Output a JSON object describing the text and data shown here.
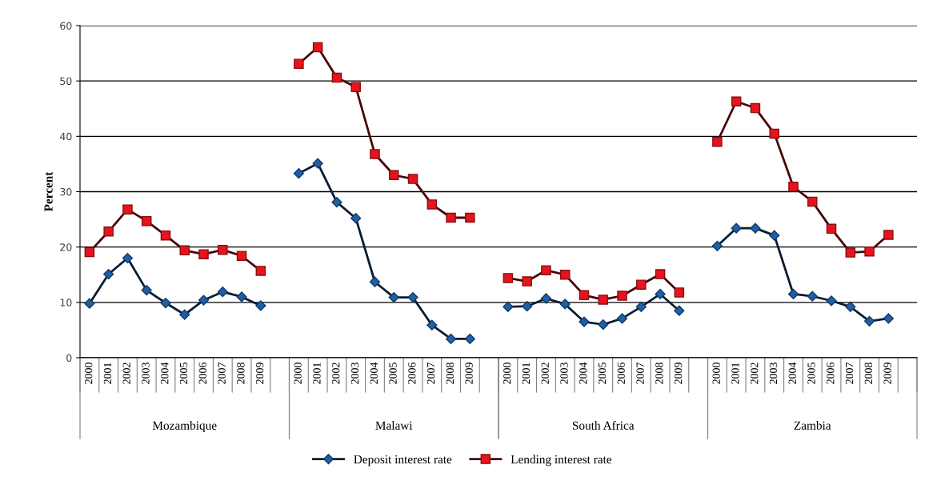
{
  "chart_data": {
    "type": "line",
    "ylabel": "Percent",
    "categories": [
      "2000",
      "2001",
      "2002",
      "2003",
      "2004",
      "2005",
      "2006",
      "2007",
      "2008",
      "2009",
      null,
      "2000",
      "2001",
      "2002",
      "2003",
      "2004",
      "2005",
      "2006",
      "2007",
      "2008",
      "2009",
      null,
      "2000",
      "2001",
      "2002",
      "2003",
      "2004",
      "2005",
      "2006",
      "2007",
      "2008",
      "2009",
      null,
      "2000",
      "2001",
      "2002",
      "2003",
      "2004",
      "2005",
      "2006",
      "2007",
      "2008",
      "2009",
      null
    ],
    "annotations": [
      "Mozambique",
      "Malawi",
      "South Africa",
      "Zambia"
    ],
    "series": [
      {
        "name": "Deposit interest rate",
        "color": "#1f5fa8",
        "marker": "diamond",
        "values": [
          9.8,
          15.1,
          18.0,
          12.2,
          9.9,
          7.8,
          10.4,
          11.9,
          11.0,
          9.4,
          null,
          33.3,
          35.1,
          28.1,
          25.2,
          13.7,
          10.9,
          10.9,
          5.9,
          3.4,
          3.4,
          null,
          9.2,
          9.3,
          10.7,
          9.7,
          6.5,
          6.0,
          7.1,
          9.2,
          11.5,
          8.5,
          null,
          20.2,
          23.4,
          23.4,
          22.1,
          11.5,
          11.1,
          10.3,
          9.2,
          6.6,
          7.1,
          null
        ]
      },
      {
        "name": "Lending interest rate",
        "color": "#e8141c",
        "marker": "square",
        "values": [
          19.1,
          22.8,
          26.8,
          24.7,
          22.1,
          19.4,
          18.7,
          19.5,
          18.4,
          15.7,
          null,
          53.1,
          56.1,
          50.6,
          48.9,
          36.8,
          33.0,
          32.3,
          27.7,
          25.3,
          25.3,
          null,
          14.4,
          13.8,
          15.8,
          15.0,
          11.3,
          10.5,
          11.2,
          13.2,
          15.1,
          11.8,
          null,
          39.0,
          46.3,
          45.1,
          40.5,
          30.9,
          28.2,
          23.3,
          19.0,
          19.2,
          22.2,
          null
        ]
      }
    ],
    "ylim": [
      0,
      60
    ],
    "yticks": [
      0,
      10,
      20,
      30,
      40,
      50,
      60
    ],
    "grid": "y",
    "legend": "bottom",
    "line_style": "solid"
  }
}
